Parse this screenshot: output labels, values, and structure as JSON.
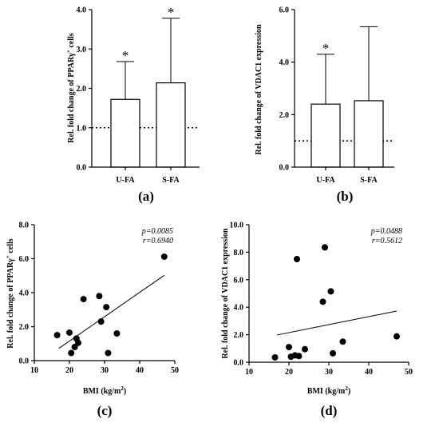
{
  "chart_data": [
    {
      "panel": "(a)",
      "type": "bar",
      "categories": [
        "U-FA",
        "S-FA"
      ],
      "values": [
        1.72,
        2.14
      ],
      "error_upper": [
        2.68,
        3.78
      ],
      "significance": [
        "*",
        "*"
      ],
      "reference_line": 1.0,
      "ylabel": "Rel. fold change of PPARγ+ cells",
      "ylim": [
        0,
        4
      ],
      "yticks": [
        "0.0",
        "1.0",
        "2.0",
        "3.0",
        "4.0"
      ]
    },
    {
      "panel": "(b)",
      "type": "bar",
      "categories": [
        "U-FA",
        "S-FA"
      ],
      "values": [
        2.4,
        2.53
      ],
      "error_upper": [
        4.3,
        5.35
      ],
      "significance": [
        "*",
        ""
      ],
      "reference_line": 1.0,
      "ylabel": "Rel. fold change of VDAC1 expression",
      "ylim": [
        0,
        6
      ],
      "yticks": [
        "0.0",
        "2.0",
        "4.0",
        "6.0"
      ]
    },
    {
      "panel": "(c)",
      "type": "scatter",
      "xlabel": "BMI (kg/m2)",
      "ylabel": "Rel. fold change of PPARγ+ cells",
      "xlim": [
        10,
        50
      ],
      "ylim": [
        0,
        8
      ],
      "xticks": [
        "10",
        "20",
        "30",
        "40",
        "50"
      ],
      "yticks": [
        "0.0",
        "2.0",
        "4.0",
        "6.0",
        "8.0"
      ],
      "points": [
        [
          16.5,
          1.5
        ],
        [
          20,
          1.65
        ],
        [
          20.5,
          0.45
        ],
        [
          21.5,
          0.8
        ],
        [
          22,
          1.3
        ],
        [
          22.5,
          1.05
        ],
        [
          24,
          3.62
        ],
        [
          28.5,
          3.8
        ],
        [
          29,
          2.3
        ],
        [
          30.5,
          3.15
        ],
        [
          31,
          0.45
        ],
        [
          33.5,
          1.6
        ],
        [
          47,
          6.12
        ]
      ],
      "fit_line": [
        [
          17,
          0.72
        ],
        [
          47,
          5.02
        ]
      ],
      "stats": [
        "p=0.0085",
        "r=0.6940"
      ]
    },
    {
      "panel": "(d)",
      "type": "scatter",
      "xlabel": "BMI (kg/m2)",
      "ylabel": "Rel. fold change of VDAC1 expression",
      "xlim": [
        10,
        50
      ],
      "ylim": [
        0,
        10
      ],
      "xticks": [
        "10",
        "20",
        "30",
        "40",
        "50"
      ],
      "yticks": [
        "0.0",
        "2.0",
        "4.0",
        "6.0",
        "8.0",
        "10.0"
      ],
      "points": [
        [
          16.5,
          0.35
        ],
        [
          20,
          1.1
        ],
        [
          20.5,
          0.4
        ],
        [
          21.5,
          0.5
        ],
        [
          22,
          7.5
        ],
        [
          22.5,
          0.45
        ],
        [
          24,
          0.95
        ],
        [
          28.5,
          4.4
        ],
        [
          29,
          8.35
        ],
        [
          30.5,
          5.15
        ],
        [
          31,
          0.65
        ],
        [
          33.5,
          1.5
        ],
        [
          47,
          1.88
        ]
      ],
      "fit_line": [
        [
          17,
          1.98
        ],
        [
          47,
          3.72
        ]
      ],
      "stats": [
        "p=0.0488",
        "r=0.5612"
      ]
    }
  ]
}
